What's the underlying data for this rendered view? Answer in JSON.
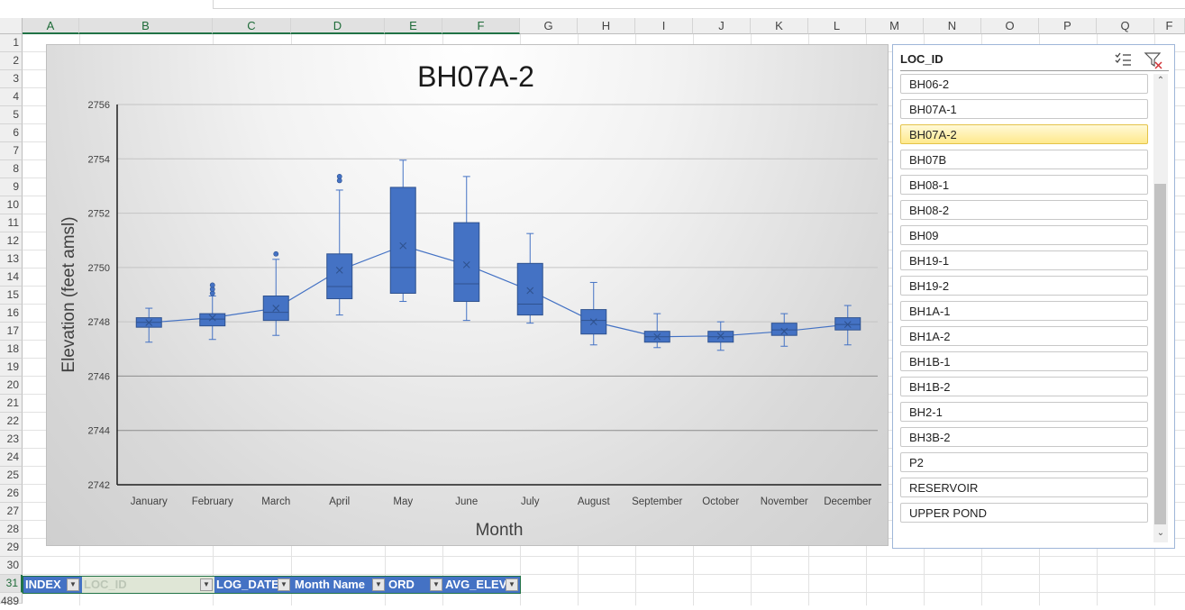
{
  "sheet": {
    "columns": [
      "A",
      "B",
      "C",
      "D",
      "E",
      "F",
      "G",
      "H",
      "I",
      "J",
      "K",
      "L",
      "M",
      "N",
      "O",
      "P",
      "Q",
      "F"
    ],
    "rows": [
      "1",
      "2",
      "3",
      "4",
      "5",
      "6",
      "7",
      "8",
      "9",
      "10",
      "11",
      "12",
      "13",
      "14",
      "15",
      "16",
      "17",
      "18",
      "19",
      "20",
      "21",
      "22",
      "23",
      "24",
      "25",
      "26",
      "27",
      "28",
      "29",
      "30",
      "31",
      "489"
    ]
  },
  "chart": {
    "title": "BH07A-2",
    "x_label": "Month",
    "y_label": "Elevation (feet amsl)"
  },
  "chart_data": {
    "type": "box",
    "title": "BH07A-2",
    "xlabel": "Month",
    "ylabel": "Elevation (feet amsl)",
    "ylim": [
      2742,
      2756
    ],
    "y_ticks": [
      2742,
      2744,
      2746,
      2748,
      2750,
      2752,
      2754,
      2756
    ],
    "categories": [
      "January",
      "February",
      "March",
      "April",
      "May",
      "June",
      "July",
      "August",
      "September",
      "October",
      "November",
      "December"
    ],
    "series": [
      {
        "type": "box",
        "color": "#4472c4",
        "boxes": [
          {
            "min": 2747.25,
            "q1": 2747.8,
            "median": 2747.98,
            "q3": 2748.15,
            "max": 2748.5,
            "mean": 2747.97,
            "outliers": []
          },
          {
            "min": 2747.35,
            "q1": 2747.85,
            "median": 2748.1,
            "q3": 2748.3,
            "max": 2748.95,
            "mean": 2748.15,
            "outliers": [
              2749.05,
              2749.2,
              2749.35
            ]
          },
          {
            "min": 2747.5,
            "q1": 2748.05,
            "median": 2748.35,
            "q3": 2748.95,
            "max": 2750.3,
            "mean": 2748.5,
            "outliers": [
              2750.5
            ]
          },
          {
            "min": 2748.25,
            "q1": 2748.85,
            "median": 2749.3,
            "q3": 2750.5,
            "max": 2752.85,
            "mean": 2749.9,
            "outliers": [
              2753.2,
              2753.35
            ]
          },
          {
            "min": 2748.75,
            "q1": 2749.05,
            "median": 2750.0,
            "q3": 2752.95,
            "max": 2753.95,
            "mean": 2750.8,
            "outliers": []
          },
          {
            "min": 2748.05,
            "q1": 2748.75,
            "median": 2749.4,
            "q3": 2751.65,
            "max": 2753.35,
            "mean": 2750.1,
            "outliers": []
          },
          {
            "min": 2747.95,
            "q1": 2748.25,
            "median": 2748.65,
            "q3": 2750.15,
            "max": 2751.25,
            "mean": 2749.15,
            "outliers": []
          },
          {
            "min": 2747.15,
            "q1": 2747.55,
            "median": 2748.05,
            "q3": 2748.45,
            "max": 2749.45,
            "mean": 2748.0,
            "outliers": []
          },
          {
            "min": 2747.05,
            "q1": 2747.25,
            "median": 2747.45,
            "q3": 2747.65,
            "max": 2748.3,
            "mean": 2747.45,
            "outliers": []
          },
          {
            "min": 2746.95,
            "q1": 2747.25,
            "median": 2747.45,
            "q3": 2747.65,
            "max": 2748.0,
            "mean": 2747.48,
            "outliers": []
          },
          {
            "min": 2747.1,
            "q1": 2747.5,
            "median": 2747.7,
            "q3": 2747.95,
            "max": 2748.3,
            "mean": 2747.65,
            "outliers": []
          },
          {
            "min": 2747.15,
            "q1": 2747.7,
            "median": 2747.9,
            "q3": 2748.15,
            "max": 2748.6,
            "mean": 2747.9,
            "outliers": []
          }
        ]
      }
    ],
    "grid": true,
    "legend": "none"
  },
  "slicer": {
    "title": "LOC_ID",
    "selected": "BH07A-2",
    "items": [
      "BH06-2",
      "BH07A-1",
      "BH07A-2",
      "BH07B",
      "BH08-1",
      "BH08-2",
      "BH09",
      "BH19-1",
      "BH19-2",
      "BH1A-1",
      "BH1A-2",
      "BH1B-1",
      "BH1B-2",
      "BH2-1",
      "BH3B-2",
      "P2",
      "RESERVOIR",
      "UPPER POND"
    ],
    "icons": {
      "multi_select": "multi-select-icon",
      "clear_filter": "clear-filter-icon"
    }
  },
  "table": {
    "headers": [
      "INDEX",
      "LOC_ID",
      "LOG_DATE",
      "Month Name",
      "ORD",
      "AVG_ELEV"
    ]
  },
  "colors": {
    "accent": "#217346",
    "box": "#4472c4",
    "selected_item": "#ffe98c"
  }
}
